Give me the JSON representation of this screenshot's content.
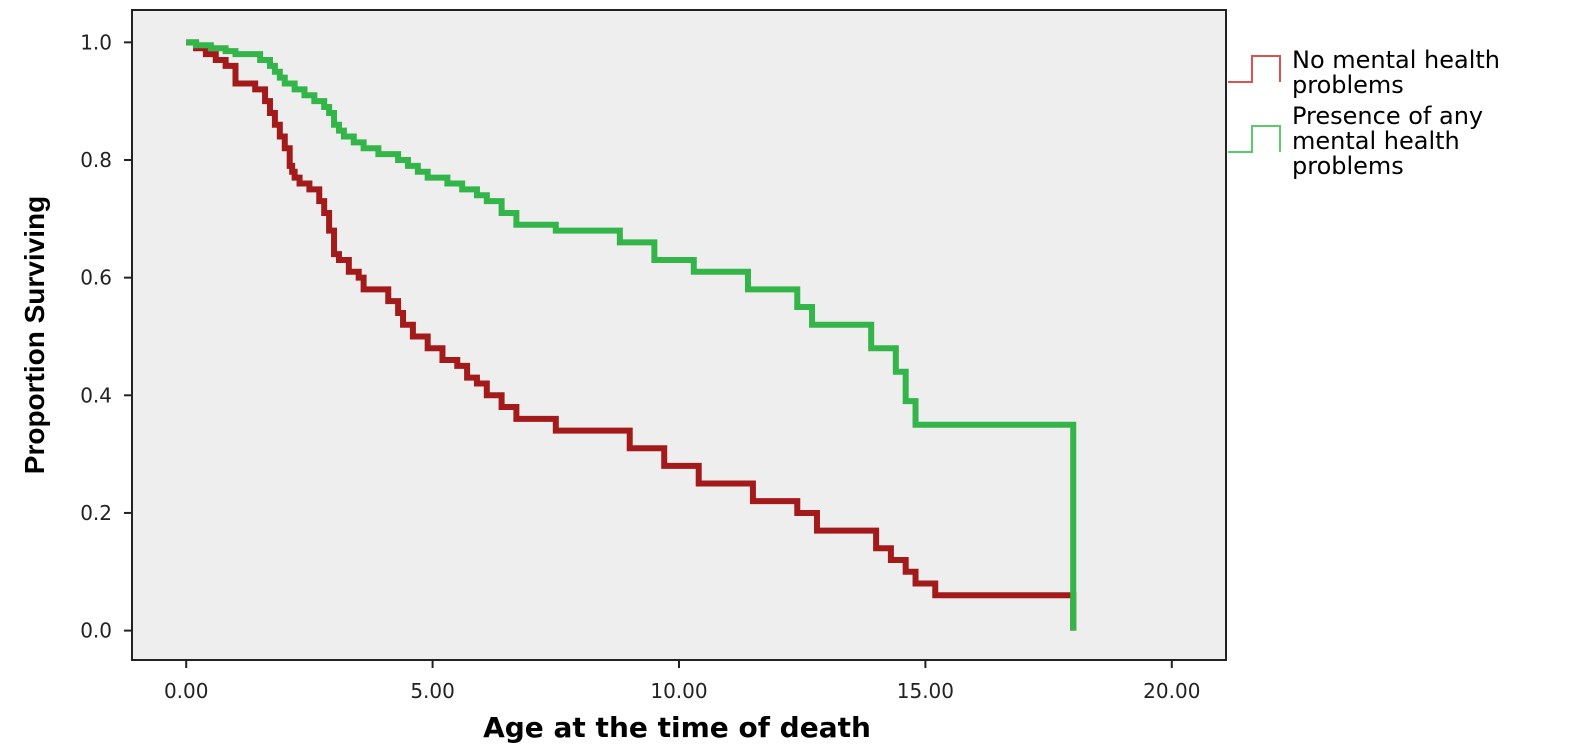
{
  "chart_data": {
    "type": "line",
    "step": true,
    "xlabel": "Age at the time of death",
    "ylabel": "Proportion Surviving",
    "xlim": [
      -1.1,
      21.1
    ],
    "ylim": [
      -0.05,
      1.055
    ],
    "xticks": [
      0,
      5,
      10,
      15,
      20
    ],
    "xtick_labels": [
      "0.00",
      "5.00",
      "10.00",
      "15.00",
      "20.00"
    ],
    "yticks": [
      0.0,
      0.2,
      0.4,
      0.6,
      0.8,
      1.0
    ],
    "ytick_labels": [
      "0.0",
      "0.2",
      "0.4",
      "0.6",
      "0.8",
      "1.0"
    ],
    "grid": false,
    "legend_position": "right",
    "background_color": "#eeeeee",
    "series": [
      {
        "name_lines": [
          "No mental health",
          "problems"
        ],
        "color": "#a31a1a",
        "legend_color": "#d9534f",
        "x": [
          0,
          0.2,
          0.4,
          0.6,
          0.8,
          1.0,
          1.4,
          1.6,
          1.7,
          1.8,
          1.9,
          2.0,
          2.1,
          2.15,
          2.2,
          2.3,
          2.5,
          2.7,
          2.8,
          2.9,
          3.0,
          3.1,
          3.3,
          3.5,
          3.6,
          4.1,
          4.3,
          4.4,
          4.6,
          4.9,
          5.2,
          5.5,
          5.7,
          5.9,
          6.1,
          6.4,
          6.7,
          7.5,
          9.0,
          9.7,
          10.4,
          11.5,
          12.4,
          12.8,
          14.0,
          14.3,
          14.6,
          14.8,
          15.2,
          18.0
        ],
        "y": [
          1.0,
          0.99,
          0.98,
          0.97,
          0.96,
          0.93,
          0.92,
          0.9,
          0.88,
          0.86,
          0.84,
          0.82,
          0.79,
          0.78,
          0.77,
          0.76,
          0.75,
          0.73,
          0.71,
          0.68,
          0.64,
          0.63,
          0.61,
          0.6,
          0.58,
          0.56,
          0.54,
          0.52,
          0.5,
          0.48,
          0.46,
          0.45,
          0.43,
          0.42,
          0.4,
          0.38,
          0.36,
          0.34,
          0.31,
          0.28,
          0.25,
          0.22,
          0.2,
          0.17,
          0.14,
          0.12,
          0.1,
          0.08,
          0.06,
          0.0
        ]
      },
      {
        "name_lines": [
          "Presence of any",
          "mental health",
          "problems"
        ],
        "color": "#33b54a",
        "legend_color": "#5cc96a",
        "x": [
          0,
          0.2,
          0.5,
          0.8,
          1.0,
          1.5,
          1.7,
          1.8,
          1.9,
          2.0,
          2.2,
          2.4,
          2.6,
          2.8,
          2.9,
          3.0,
          3.1,
          3.2,
          3.4,
          3.6,
          3.9,
          4.3,
          4.5,
          4.7,
          4.9,
          5.3,
          5.6,
          5.9,
          6.1,
          6.4,
          6.7,
          7.5,
          8.8,
          9.5,
          10.3,
          11.4,
          12.4,
          12.7,
          13.9,
          14.4,
          14.6,
          14.8,
          15.2,
          18.0
        ],
        "y": [
          1.0,
          0.995,
          0.99,
          0.985,
          0.98,
          0.97,
          0.96,
          0.95,
          0.94,
          0.93,
          0.92,
          0.91,
          0.9,
          0.89,
          0.88,
          0.86,
          0.85,
          0.84,
          0.83,
          0.82,
          0.81,
          0.8,
          0.79,
          0.78,
          0.77,
          0.76,
          0.75,
          0.74,
          0.73,
          0.71,
          0.69,
          0.68,
          0.66,
          0.63,
          0.61,
          0.58,
          0.55,
          0.52,
          0.48,
          0.44,
          0.39,
          0.35,
          0.35,
          0.0
        ]
      }
    ]
  }
}
